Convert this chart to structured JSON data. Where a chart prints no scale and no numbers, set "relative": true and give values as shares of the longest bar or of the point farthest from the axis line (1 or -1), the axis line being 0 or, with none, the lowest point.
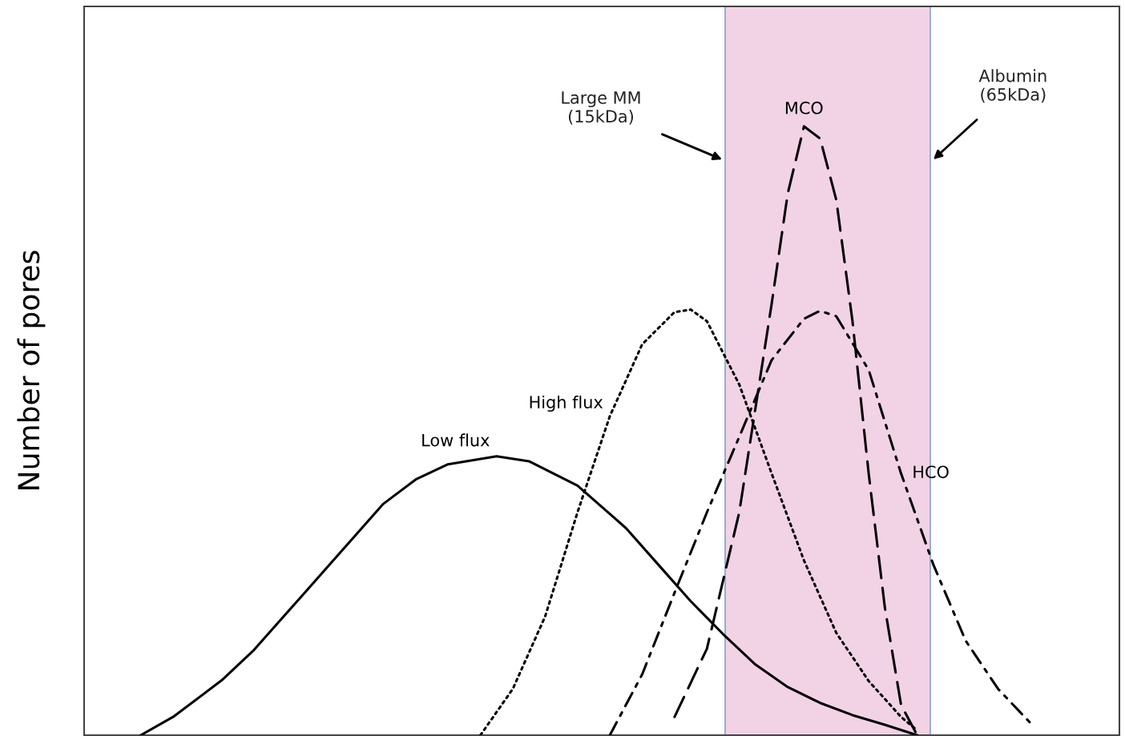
{
  "chart_data": {
    "type": "line",
    "relative": true,
    "ylabel": "Number of pores",
    "grid": false,
    "legend": false,
    "marker": "none",
    "categories": [
      null,
      null,
      null,
      null,
      null,
      null,
      null,
      null,
      null,
      null,
      null,
      null,
      null,
      null,
      null,
      null,
      null,
      null,
      null,
      null,
      null,
      null,
      null,
      null,
      null,
      null,
      null,
      null,
      null,
      null,
      null,
      null,
      null,
      null,
      null,
      null,
      null,
      null,
      null,
      null,
      null,
      null,
      null,
      null,
      null,
      null,
      null,
      null,
      null,
      null,
      null,
      null,
      null,
      null,
      null,
      null,
      null,
      null,
      null,
      null,
      null,
      null,
      null,
      null
    ],
    "series": [
      {
        "name": "Low flux",
        "color": "#000000",
        "line_style": "solid",
        "values": [
          null,
          null,
          null,
          0,
          null,
          0.03,
          null,
          null,
          0.09,
          null,
          0.14,
          null,
          null,
          0.23,
          null,
          0.29,
          null,
          null,
          0.38,
          null,
          0.42,
          null,
          0.445,
          null,
          null,
          0.458,
          null,
          0.45,
          null,
          null,
          0.41,
          null,
          null,
          0.34,
          null,
          0.28,
          null,
          0.22,
          null,
          0.166,
          null,
          0.116,
          null,
          0.079,
          null,
          0.053,
          null,
          0.033,
          null,
          0.017,
          null,
          0,
          null,
          null,
          null,
          null,
          null,
          null,
          null,
          null,
          null,
          null,
          null,
          null
        ]
      },
      {
        "name": "High flux",
        "color": "#000000",
        "line_style": "dotted",
        "values": [
          null,
          null,
          null,
          null,
          null,
          null,
          null,
          null,
          null,
          null,
          null,
          null,
          null,
          null,
          null,
          null,
          null,
          null,
          null,
          null,
          null,
          null,
          null,
          null,
          0,
          null,
          0.076,
          null,
          0.195,
          null,
          0.366,
          null,
          0.524,
          null,
          0.642,
          null,
          0.695,
          0.699,
          0.68,
          null,
          0.576,
          null,
          0.43,
          null,
          0.287,
          null,
          0.168,
          null,
          0.089,
          null,
          0.03,
          0.008,
          null,
          null,
          null,
          null,
          null,
          null,
          null,
          null,
          null,
          null,
          null,
          null
        ]
      },
      {
        "name": "MCO",
        "color": "#000000",
        "line_style": "dashed",
        "values": [
          null,
          null,
          null,
          null,
          null,
          null,
          null,
          null,
          null,
          null,
          null,
          null,
          null,
          null,
          null,
          null,
          null,
          null,
          null,
          null,
          null,
          null,
          null,
          null,
          null,
          null,
          null,
          null,
          null,
          null,
          null,
          null,
          null,
          null,
          null,
          null,
          0.03,
          null,
          0.142,
          null,
          0.366,
          null,
          0.708,
          0.89,
          1,
          0.98,
          0.879,
          0.68,
          0.43,
          0.21,
          0.05,
          0,
          null,
          null,
          null,
          null,
          null,
          null,
          null,
          null,
          null,
          null,
          null,
          null
        ]
      },
      {
        "name": "HCO",
        "color": "#000000",
        "line_style": "dashdot",
        "values": [
          null,
          null,
          null,
          null,
          null,
          null,
          null,
          null,
          null,
          null,
          null,
          null,
          null,
          null,
          null,
          null,
          null,
          null,
          null,
          null,
          null,
          null,
          null,
          null,
          null,
          null,
          null,
          null,
          null,
          null,
          null,
          null,
          0,
          null,
          0.1,
          null,
          0.234,
          null,
          0.366,
          null,
          0.49,
          null,
          0.616,
          null,
          0.684,
          0.697,
          0.688,
          null,
          0.6,
          null,
          0.43,
          null,
          0.28,
          null,
          0.155,
          null,
          0.076,
          null,
          0.02,
          null,
          null,
          null,
          null,
          null
        ]
      }
    ],
    "annotations": [
      "Large MM\n(15kDa)",
      "Albumin\n(65kDa)"
    ]
  }
}
